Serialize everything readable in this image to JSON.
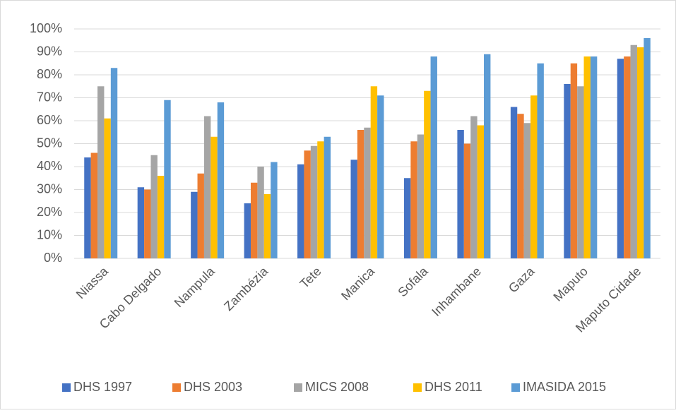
{
  "chart_data": {
    "type": "bar",
    "categories": [
      "Niassa",
      "Cabo Delgado",
      "Nampula",
      "Zambézia",
      "Tete",
      "Manica",
      "Sofala",
      "Inhambane",
      "Gaza",
      "Maputo",
      "Maputo Cidade"
    ],
    "series": [
      {
        "name": "DHS 1997",
        "color": "#4472c4",
        "values": [
          44,
          31,
          29,
          24,
          41,
          43,
          35,
          56,
          66,
          76,
          87
        ]
      },
      {
        "name": "DHS 2003",
        "color": "#ed7d31",
        "values": [
          46,
          30,
          37,
          33,
          47,
          56,
          51,
          50,
          63,
          85,
          88
        ]
      },
      {
        "name": "MICS 2008",
        "color": "#a5a5a5",
        "values": [
          75,
          45,
          62,
          40,
          49,
          57,
          54,
          62,
          59,
          75,
          93
        ]
      },
      {
        "name": "DHS 2011",
        "color": "#ffc000",
        "values": [
          61,
          36,
          53,
          28,
          51,
          75,
          73,
          58,
          71,
          88,
          92
        ]
      },
      {
        "name": "IMASIDA 2015",
        "color": "#5b9bd5",
        "values": [
          83,
          69,
          68,
          42,
          53,
          71,
          88,
          89,
          85,
          88,
          96
        ]
      }
    ],
    "ylim": [
      0,
      100
    ],
    "yticks": [
      {
        "value": 0,
        "label": "0%"
      },
      {
        "value": 10,
        "label": "10%"
      },
      {
        "value": 20,
        "label": "20%"
      },
      {
        "value": 30,
        "label": "30%"
      },
      {
        "value": 40,
        "label": "40%"
      },
      {
        "value": 50,
        "label": "50%"
      },
      {
        "value": 60,
        "label": "60%"
      },
      {
        "value": 70,
        "label": "70%"
      },
      {
        "value": 80,
        "label": "80%"
      },
      {
        "value": 90,
        "label": "90%"
      },
      {
        "value": 100,
        "label": "100%"
      }
    ],
    "grid": true,
    "legend": "bottom"
  }
}
